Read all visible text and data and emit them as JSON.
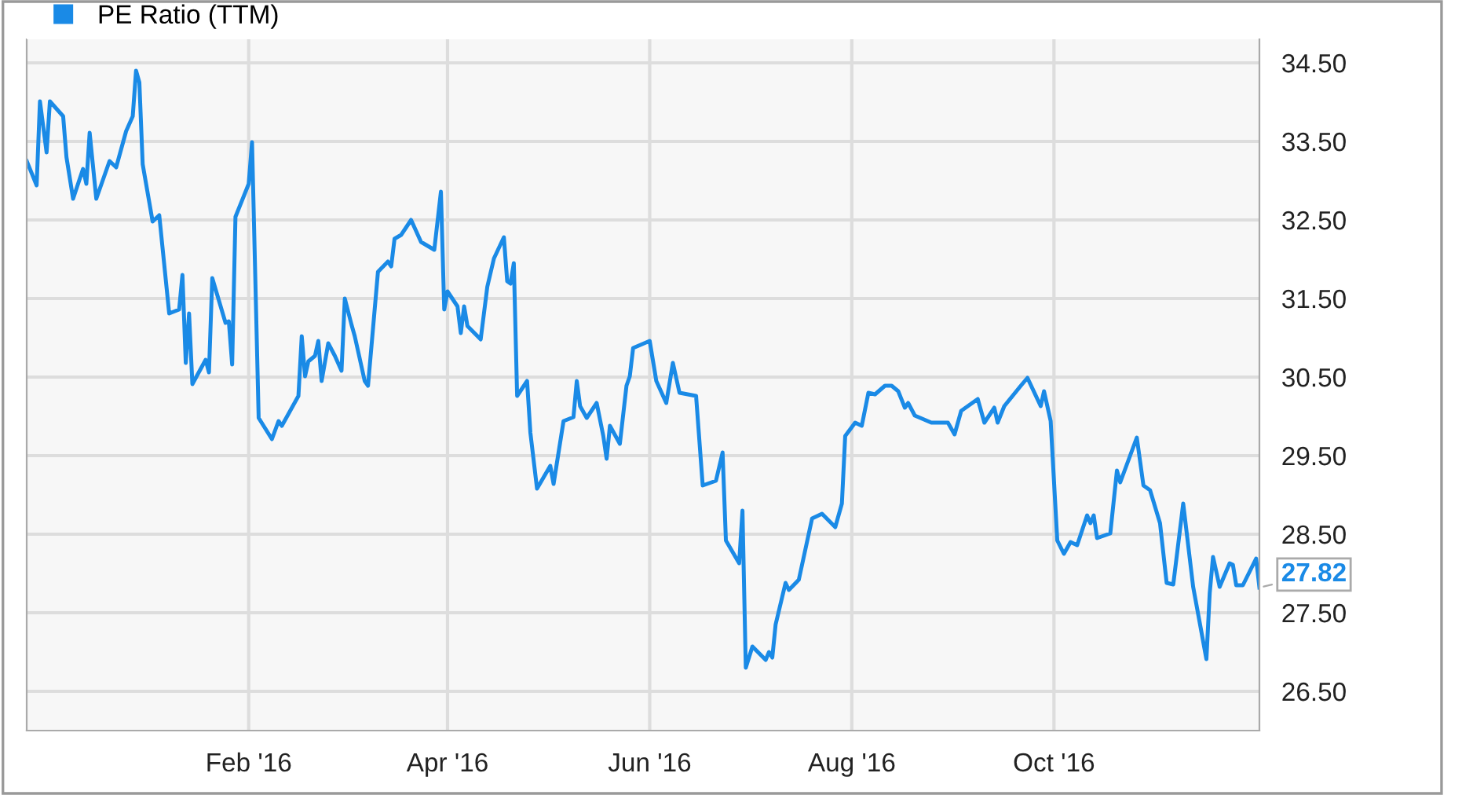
{
  "chart_data": {
    "type": "line",
    "xlim": [
      "2015-11-26",
      "2016-12-02"
    ],
    "ylim": [
      26.0,
      34.8
    ],
    "xticks": [
      {
        "value": "2016-02-01",
        "label": "Feb '16"
      },
      {
        "value": "2016-04-01",
        "label": "Apr '16"
      },
      {
        "value": "2016-06-01",
        "label": "Jun '16"
      },
      {
        "value": "2016-08-01",
        "label": "Aug '16"
      },
      {
        "value": "2016-10-01",
        "label": "Oct '16"
      }
    ],
    "yticks": [
      {
        "value": 26.5,
        "label": "26.50"
      },
      {
        "value": 27.5,
        "label": "27.50"
      },
      {
        "value": 28.5,
        "label": "28.50"
      },
      {
        "value": 29.5,
        "label": "29.50"
      },
      {
        "value": 30.5,
        "label": "30.50"
      },
      {
        "value": 31.5,
        "label": "31.50"
      },
      {
        "value": 32.5,
        "label": "32.50"
      },
      {
        "value": 33.5,
        "label": "33.50"
      },
      {
        "value": 34.5,
        "label": "34.50"
      }
    ],
    "grid": true,
    "legend": "top left",
    "marker": "none",
    "line_style": "solid",
    "annotations": [
      {
        "text": "27.82",
        "x": "2016-12-02",
        "y": 27.82
      }
    ],
    "series": [
      {
        "name": "PE Ratio (TTM)",
        "color": "#1a8ae6",
        "x": [
          "2015-11-26",
          "2015-11-29",
          "2015-11-30",
          "2015-12-02",
          "2015-12-03",
          "2015-12-07",
          "2015-12-08",
          "2015-12-10",
          "2015-12-13",
          "2015-12-14",
          "2015-12-15",
          "2015-12-17",
          "2015-12-21",
          "2015-12-23",
          "2015-12-26",
          "2015-12-28",
          "2015-12-29",
          "2015-12-30",
          "2015-12-31",
          "2016-01-03",
          "2016-01-05",
          "2016-01-08",
          "2016-01-11",
          "2016-01-12",
          "2016-01-13",
          "2016-01-14",
          "2016-01-15",
          "2016-01-19",
          "2016-01-20",
          "2016-01-21",
          "2016-01-25",
          "2016-01-26",
          "2016-01-27",
          "2016-01-28",
          "2016-02-01",
          "2016-02-02",
          "2016-02-04",
          "2016-02-08",
          "2016-02-10",
          "2016-02-11",
          "2016-02-16",
          "2016-02-17",
          "2016-02-18",
          "2016-02-19",
          "2016-02-21",
          "2016-02-22",
          "2016-02-23",
          "2016-02-25",
          "2016-02-27",
          "2016-02-29",
          "2016-03-01",
          "2016-03-03",
          "2016-03-04",
          "2016-03-07",
          "2016-03-08",
          "2016-03-11",
          "2016-03-14",
          "2016-03-15",
          "2016-03-16",
          "2016-03-18",
          "2016-03-21",
          "2016-03-24",
          "2016-03-28",
          "2016-03-30",
          "2016-03-31",
          "2016-04-01",
          "2016-04-04",
          "2016-04-05",
          "2016-04-06",
          "2016-04-07",
          "2016-04-11",
          "2016-04-13",
          "2016-04-15",
          "2016-04-18",
          "2016-04-19",
          "2016-04-20",
          "2016-04-21",
          "2016-04-22",
          "2016-04-25",
          "2016-04-26",
          "2016-04-28",
          "2016-05-02",
          "2016-05-03",
          "2016-05-06",
          "2016-05-09",
          "2016-05-10",
          "2016-05-11",
          "2016-05-13",
          "2016-05-16",
          "2016-05-18",
          "2016-05-19",
          "2016-05-20",
          "2016-05-23",
          "2016-05-25",
          "2016-05-26",
          "2016-05-27",
          "2016-06-01",
          "2016-06-03",
          "2016-06-06",
          "2016-06-08",
          "2016-06-10",
          "2016-06-15",
          "2016-06-17",
          "2016-06-21",
          "2016-06-23",
          "2016-06-24",
          "2016-06-28",
          "2016-06-29",
          "2016-06-30",
          "2016-07-02",
          "2016-07-06",
          "2016-07-07",
          "2016-07-08",
          "2016-07-09",
          "2016-07-12",
          "2016-07-13",
          "2016-07-16",
          "2016-07-20",
          "2016-07-23",
          "2016-07-27",
          "2016-07-29",
          "2016-07-30",
          "2016-08-02",
          "2016-08-04",
          "2016-08-06",
          "2016-08-08",
          "2016-08-11",
          "2016-08-13",
          "2016-08-15",
          "2016-08-17",
          "2016-08-18",
          "2016-08-20",
          "2016-08-25",
          "2016-08-30",
          "2016-09-01",
          "2016-09-03",
          "2016-09-08",
          "2016-09-10",
          "2016-09-13",
          "2016-09-14",
          "2016-09-16",
          "2016-09-21",
          "2016-09-23",
          "2016-09-27",
          "2016-09-28",
          "2016-09-30",
          "2016-10-02",
          "2016-10-04",
          "2016-10-06",
          "2016-10-08",
          "2016-10-11",
          "2016-10-12",
          "2016-10-13",
          "2016-10-14",
          "2016-10-18",
          "2016-10-20",
          "2016-10-21",
          "2016-10-26",
          "2016-10-28",
          "2016-10-30",
          "2016-11-02",
          "2016-11-04",
          "2016-11-06",
          "2016-11-09",
          "2016-11-12",
          "2016-11-16",
          "2016-11-17",
          "2016-11-18",
          "2016-11-20",
          "2016-11-23",
          "2016-11-24",
          "2016-11-25",
          "2016-11-27",
          "2016-12-01",
          "2016-12-02"
        ],
        "values": [
          33.25,
          32.94,
          34.01,
          33.36,
          34.01,
          33.82,
          33.3,
          32.77,
          33.15,
          32.96,
          33.61,
          32.77,
          33.25,
          33.17,
          33.63,
          33.82,
          34.4,
          34.25,
          33.21,
          32.48,
          32.56,
          31.31,
          31.36,
          31.8,
          30.68,
          31.31,
          30.41,
          30.72,
          30.56,
          31.76,
          31.19,
          31.21,
          30.66,
          32.54,
          32.96,
          33.49,
          29.98,
          29.71,
          29.94,
          29.88,
          30.26,
          31.02,
          30.51,
          30.7,
          30.77,
          30.96,
          30.45,
          30.93,
          30.77,
          30.58,
          31.5,
          31.17,
          31.02,
          30.45,
          30.39,
          31.84,
          31.97,
          31.91,
          32.26,
          32.31,
          32.5,
          32.22,
          32.12,
          32.86,
          31.36,
          31.59,
          31.4,
          31.06,
          31.4,
          31.15,
          30.98,
          31.65,
          32.01,
          32.28,
          31.72,
          31.69,
          31.95,
          30.26,
          30.45,
          29.79,
          29.08,
          29.37,
          29.14,
          29.94,
          29.99,
          30.45,
          30.13,
          29.98,
          30.17,
          29.75,
          29.46,
          29.88,
          29.65,
          30.39,
          30.51,
          30.87,
          30.96,
          30.45,
          30.17,
          30.68,
          30.3,
          30.26,
          29.12,
          29.18,
          29.54,
          28.42,
          28.13,
          28.8,
          26.8,
          27.07,
          26.9,
          27.0,
          26.93,
          27.35,
          27.88,
          27.79,
          27.92,
          28.7,
          28.76,
          28.59,
          28.89,
          29.75,
          29.92,
          29.88,
          30.3,
          30.28,
          30.39,
          30.39,
          30.32,
          30.11,
          30.17,
          30.01,
          29.92,
          29.92,
          29.77,
          30.07,
          30.22,
          29.92,
          30.11,
          29.92,
          30.13,
          30.39,
          30.49,
          30.13,
          30.32,
          29.94,
          28.42,
          28.25,
          28.4,
          28.36,
          28.74,
          28.64,
          28.74,
          28.45,
          28.51,
          29.31,
          29.16,
          29.73,
          29.12,
          29.06,
          28.64,
          27.88,
          27.86,
          28.89,
          27.83,
          26.91,
          27.75,
          28.21,
          27.83,
          28.13,
          28.11,
          27.85,
          27.85,
          28.19,
          27.82
        ]
      }
    ]
  }
}
